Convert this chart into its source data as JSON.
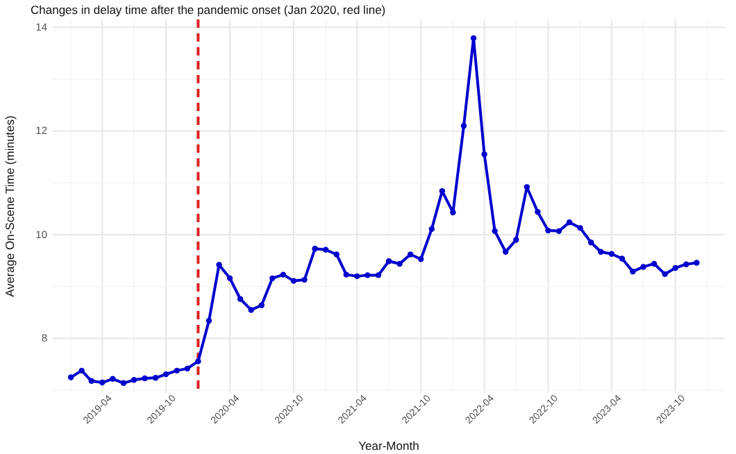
{
  "chart_data": {
    "type": "line",
    "title": "Changes in delay time after the pandemic onset (Jan 2020, red line)",
    "xlabel": "Year-Month",
    "ylabel": "Average On-Scene Time (minutes)",
    "x": [
      "2019-01",
      "2019-02",
      "2019-03",
      "2019-04",
      "2019-05",
      "2019-06",
      "2019-07",
      "2019-08",
      "2019-09",
      "2019-10",
      "2019-11",
      "2019-12",
      "2020-01",
      "2020-02",
      "2020-03",
      "2020-04",
      "2020-05",
      "2020-06",
      "2020-07",
      "2020-08",
      "2020-09",
      "2020-10",
      "2020-11",
      "2020-12",
      "2021-01",
      "2021-02",
      "2021-03",
      "2021-04",
      "2021-05",
      "2021-06",
      "2021-07",
      "2021-08",
      "2021-09",
      "2021-10",
      "2021-11",
      "2021-12",
      "2022-01",
      "2022-02",
      "2022-03",
      "2022-04",
      "2022-05",
      "2022-06",
      "2022-07",
      "2022-08",
      "2022-09",
      "2022-10",
      "2022-11",
      "2022-12",
      "2023-01",
      "2023-02",
      "2023-03",
      "2023-04",
      "2023-05",
      "2023-06",
      "2023-07",
      "2023-08",
      "2023-09",
      "2023-10",
      "2023-11",
      "2023-12"
    ],
    "series": [
      {
        "color": "#0000cd",
        "values": [
          7.25,
          7.38,
          7.18,
          7.15,
          7.22,
          7.14,
          7.2,
          7.23,
          7.24,
          7.31,
          7.38,
          7.42,
          7.56,
          8.34,
          9.42,
          9.16,
          8.76,
          8.55,
          8.64,
          9.16,
          9.23,
          9.11,
          9.13,
          9.73,
          9.71,
          9.62,
          9.23,
          9.2,
          9.22,
          9.22,
          9.49,
          9.44,
          9.62,
          9.53,
          10.11,
          10.84,
          10.43,
          12.1,
          13.79,
          11.55,
          10.07,
          9.67,
          9.9,
          10.92,
          10.44,
          10.08,
          10.07,
          10.24,
          10.13,
          9.85,
          9.67,
          9.63,
          9.54,
          9.29,
          9.38,
          9.44,
          9.24,
          9.36,
          9.43,
          9.46
        ]
      }
    ],
    "xlim": [
      "2018-11-10",
      "2024-02-20"
    ],
    "xticks": [
      {
        "value": "2019-01",
        "label": null
      },
      "2019-04",
      {
        "value": "2019-07",
        "label": null
      },
      "2019-10",
      {
        "value": "2020-01",
        "label": null
      },
      "2020-04",
      {
        "value": "2020-07",
        "label": null
      },
      "2020-10",
      {
        "value": "2021-01",
        "label": null
      },
      "2021-04",
      {
        "value": "2021-07",
        "label": null
      },
      "2021-10",
      {
        "value": "2022-01",
        "label": null
      },
      "2022-04",
      {
        "value": "2022-07",
        "label": null
      },
      "2022-10",
      {
        "value": "2023-01",
        "label": null
      },
      "2023-04",
      {
        "value": "2023-07",
        "label": null
      },
      "2023-10",
      {
        "value": "2024-01",
        "label": null
      }
    ],
    "ylim": [
      6.95,
      14.15
    ],
    "yticks": [
      {
        "value": 7,
        "label": null
      },
      8,
      {
        "value": 9,
        "label": null
      },
      10,
      {
        "value": 11,
        "label": null
      },
      12,
      {
        "value": 13,
        "label": null
      },
      14
    ],
    "ref_lines": [
      {
        "axis": "x",
        "value": "2020-01",
        "color": "#dd2222",
        "line_style": "dashed"
      }
    ],
    "grid": true,
    "marker": "circle",
    "line_style": "solid"
  }
}
